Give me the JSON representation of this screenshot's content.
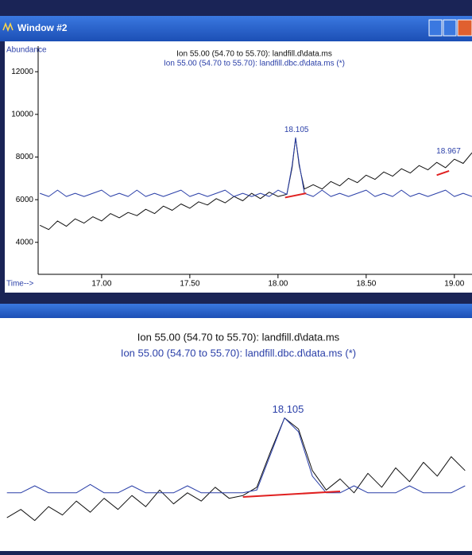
{
  "window": {
    "title": "Window #2"
  },
  "chart_data": [
    {
      "type": "line",
      "ylabel": "Abundance",
      "xlabel": "Time-->",
      "x": [
        16.65,
        16.7,
        16.75,
        16.8,
        16.85,
        16.9,
        16.95,
        17.0,
        17.05,
        17.1,
        17.15,
        17.2,
        17.25,
        17.3,
        17.35,
        17.4,
        17.45,
        17.5,
        17.55,
        17.6,
        17.65,
        17.7,
        17.75,
        17.8,
        17.85,
        17.9,
        17.95,
        18.0,
        18.05,
        18.08,
        18.1,
        18.12,
        18.15,
        18.2,
        18.25,
        18.3,
        18.35,
        18.4,
        18.45,
        18.5,
        18.55,
        18.6,
        18.65,
        18.7,
        18.75,
        18.8,
        18.85,
        18.9,
        18.95,
        19.0,
        19.05,
        19.1
      ],
      "series": [
        {
          "name": "Ion 55.00 (54.70 to 55.70): landfill.d\\data.ms",
          "color": "#111111",
          "values": [
            4800,
            4600,
            5000,
            4750,
            5100,
            4900,
            5200,
            5000,
            5350,
            5150,
            5400,
            5250,
            5550,
            5350,
            5700,
            5500,
            5800,
            5600,
            5900,
            5750,
            6050,
            5850,
            6150,
            5950,
            6300,
            6050,
            6350,
            6150,
            6250,
            7500,
            8900,
            7600,
            6500,
            6700,
            6500,
            6850,
            6650,
            7000,
            6800,
            7150,
            6950,
            7300,
            7100,
            7450,
            7250,
            7600,
            7400,
            7750,
            7500,
            7900,
            7700,
            8200
          ]
        },
        {
          "name": "Ion 55.00 (54.70 to 55.70): landfill.dbc.d\\data.ms (*)",
          "color": "#2a3fa8",
          "values": [
            6300,
            6150,
            6450,
            6150,
            6300,
            6150,
            6300,
            6450,
            6150,
            6300,
            6150,
            6450,
            6150,
            6300,
            6150,
            6300,
            6450,
            6150,
            6300,
            6150,
            6300,
            6450,
            6150,
            6300,
            6150,
            6300,
            6150,
            6450,
            6250,
            7600,
            8900,
            7700,
            6300,
            6150,
            6450,
            6150,
            6300,
            6150,
            6300,
            6450,
            6150,
            6300,
            6150,
            6450,
            6150,
            6300,
            6150,
            6300,
            6450,
            6150,
            6300,
            6150
          ]
        }
      ],
      "baselines": {
        "color": "#e02020",
        "segments": [
          {
            "x": [
              18.04,
              18.16
            ],
            "y": [
              6100,
              6300
            ]
          },
          {
            "x": [
              18.9,
              18.97
            ],
            "y": [
              7150,
              7350
            ]
          }
        ]
      },
      "annotations": [
        {
          "text": "18.105",
          "x": 18.105,
          "y": 8900
        },
        {
          "text": "18.967",
          "x": 18.967,
          "y": 7900
        }
      ],
      "xlim": [
        16.64,
        19.1
      ],
      "ylim": [
        2500,
        13200
      ],
      "xticks": [
        {
          "value": 17,
          "label": "17.00"
        },
        {
          "value": 17.5,
          "label": "17.50"
        },
        {
          "value": 18,
          "label": "18.00"
        },
        {
          "value": 18.5,
          "label": "18.50"
        },
        {
          "value": 19,
          "label": "19.00"
        }
      ],
      "yticks": [
        4000,
        6000,
        8000,
        10000,
        12000
      ],
      "grid": false
    },
    {
      "type": "line",
      "x": [
        17.7,
        17.72,
        17.74,
        17.76,
        17.78,
        17.8,
        17.82,
        17.84,
        17.86,
        17.88,
        17.9,
        17.92,
        17.94,
        17.96,
        17.98,
        18.0,
        18.02,
        18.04,
        18.06,
        18.08,
        18.1,
        18.12,
        18.14,
        18.16,
        18.18,
        18.2,
        18.22,
        18.24,
        18.26,
        18.28,
        18.3,
        18.32,
        18.34,
        18.36
      ],
      "series": [
        {
          "name": "Ion 55.00 (54.70 to 55.70): landfill.d\\data.ms",
          "color": "#111111",
          "values": [
            5300,
            5600,
            5200,
            5700,
            5400,
            5900,
            5500,
            6000,
            5600,
            6100,
            5700,
            6300,
            5800,
            6200,
            5900,
            6400,
            6000,
            6100,
            6400,
            7700,
            8900,
            8500,
            7000,
            6300,
            6700,
            6200,
            6900,
            6400,
            7100,
            6600,
            7300,
            6800,
            7500,
            7000
          ]
        },
        {
          "name": "Ion 55.00 (54.70 to 55.70): landfill.dbc.d\\data.ms (*)",
          "color": "#2a3fa8",
          "values": [
            6200,
            6200,
            6450,
            6200,
            6200,
            6200,
            6500,
            6200,
            6200,
            6450,
            6200,
            6200,
            6200,
            6450,
            6200,
            6200,
            6200,
            6200,
            6300,
            7600,
            8900,
            8400,
            6800,
            6200,
            6200,
            6450,
            6200,
            6200,
            6200,
            6450,
            6200,
            6200,
            6200,
            6450
          ]
        }
      ],
      "baselines": {
        "color": "#e02020",
        "segments": [
          {
            "x": [
              18.04,
              18.18
            ],
            "y": [
              6050,
              6250
            ]
          }
        ]
      },
      "annotations": [
        {
          "text": "18.105",
          "x": 18.105,
          "y": 8900
        }
      ],
      "xlim": [
        17.69,
        18.37
      ],
      "ylim": [
        4100,
        12500
      ],
      "grid": false
    }
  ]
}
